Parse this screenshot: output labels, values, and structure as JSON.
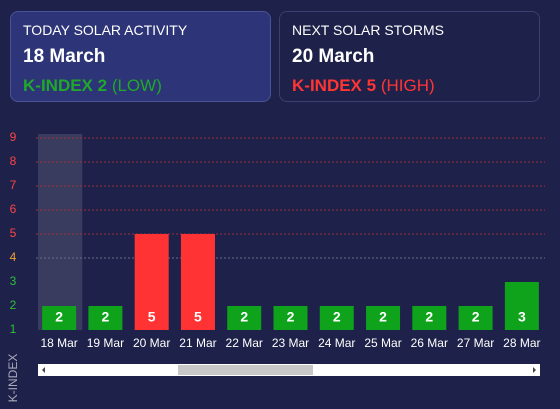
{
  "cards": [
    {
      "title": "TODAY SOLAR ACTIVITY",
      "date": "18 March",
      "kindex": "K-INDEX 2",
      "level": "(LOW)",
      "color": "#1fa82a"
    },
    {
      "title": "NEXT SOLAR STORMS",
      "date": "20 March",
      "kindex": "K-INDEX 5",
      "level": "(HIGH)",
      "color": "#ff3535"
    }
  ],
  "chart_data": {
    "type": "bar",
    "ylabel": "K-INDEX",
    "categories": [
      "18 Mar",
      "19 Mar",
      "20 Mar",
      "21 Mar",
      "22 Mar",
      "23 Mar",
      "24 Mar",
      "25 Mar",
      "26 Mar",
      "27 Mar",
      "28 Mar"
    ],
    "values": [
      2,
      2,
      5,
      5,
      2,
      2,
      2,
      2,
      2,
      2,
      3
    ],
    "colors": [
      "#0ea31a",
      "#0ea31a",
      "#ff3333",
      "#ff3333",
      "#0ea31a",
      "#0ea31a",
      "#0ea31a",
      "#0ea31a",
      "#0ea31a",
      "#0ea31a",
      "#0ea31a"
    ],
    "highlight_index": 0,
    "ylim": [
      1,
      9.5
    ],
    "yticks": [
      1,
      2,
      3,
      4,
      5,
      6,
      7,
      8,
      9
    ],
    "ytick_colors": [
      "#2fbf3a",
      "#2fbf3a",
      "#2fbf3a",
      "#f0a030",
      "#ff4545",
      "#ff4545",
      "#ff4545",
      "#ff4545",
      "#ff4545"
    ],
    "grid_colors": [
      null,
      null,
      null,
      "#6a6d8a",
      "#a0303a",
      "#a0303a",
      "#a0303a",
      "#a0303a",
      "#a0303a"
    ]
  }
}
